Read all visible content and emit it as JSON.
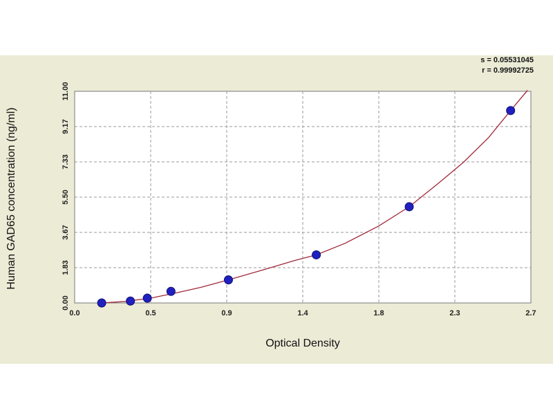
{
  "chart_data": {
    "type": "scatter",
    "xlabel": "Optical Density",
    "ylabel": "Human GAD65 concentration (ng/ml)",
    "x_ticks": [
      "0.0",
      "0.5",
      "0.9",
      "1.4",
      "1.8",
      "2.3",
      "2.7"
    ],
    "y_ticks": [
      "0.00",
      "1.83",
      "3.67",
      "5.50",
      "7.33",
      "9.17",
      "11.00"
    ],
    "xlim": [
      0.0,
      2.7
    ],
    "ylim": [
      0.0,
      11.0
    ],
    "grid": true,
    "stats": [
      "s = 0.05531045",
      "r = 0.99992725"
    ],
    "series": [
      {
        "type": "scatter",
        "color": "#2020c0",
        "x": [
          0.16,
          0.33,
          0.43,
          0.57,
          0.91,
          1.43,
          1.98,
          2.58
        ],
        "y": [
          0.0,
          0.1,
          0.25,
          0.6,
          1.2,
          2.5,
          5.0,
          10.0
        ]
      },
      {
        "type": "line",
        "color": "#a02838",
        "x": [
          0.16,
          0.3,
          0.45,
          0.6,
          0.75,
          0.91,
          1.1,
          1.3,
          1.43,
          1.6,
          1.8,
          1.98,
          2.15,
          2.3,
          2.45,
          2.58,
          2.68
        ],
        "y": [
          0.0,
          0.08,
          0.25,
          0.52,
          0.82,
          1.2,
          1.68,
          2.2,
          2.5,
          3.1,
          4.0,
          5.0,
          6.2,
          7.3,
          8.6,
          10.0,
          11.05
        ]
      }
    ]
  }
}
